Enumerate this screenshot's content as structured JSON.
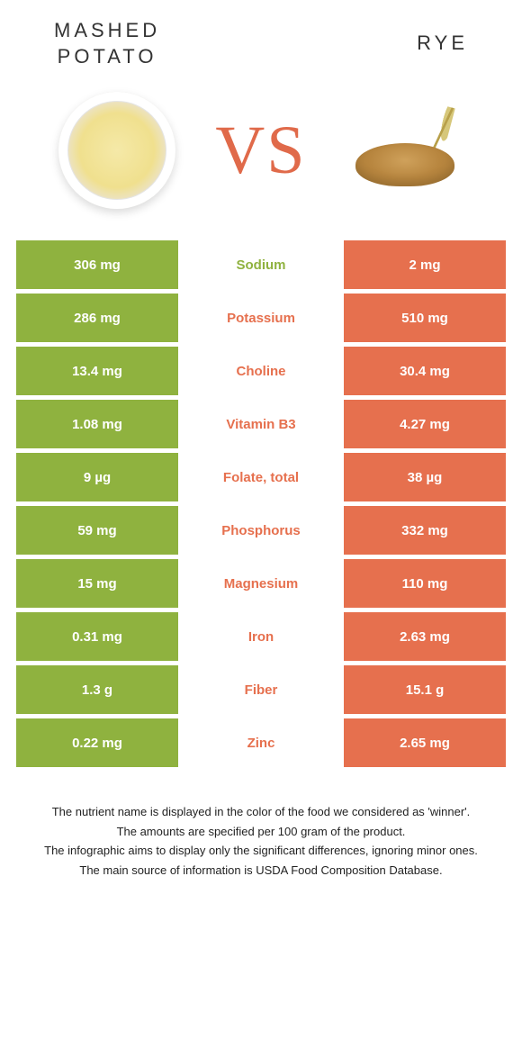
{
  "header": {
    "food1_line1": "MASHED",
    "food1_line2": "POTATO",
    "food2": "RYE"
  },
  "vs_label": "VS",
  "colors": {
    "left": "#8fb23f",
    "right": "#e6704e",
    "vs": "#e06a4a"
  },
  "rows": [
    {
      "left": "306 mg",
      "label": "Sodium",
      "right": "2 mg",
      "winner": "left"
    },
    {
      "left": "286 mg",
      "label": "Potassium",
      "right": "510 mg",
      "winner": "right"
    },
    {
      "left": "13.4 mg",
      "label": "Choline",
      "right": "30.4 mg",
      "winner": "right"
    },
    {
      "left": "1.08 mg",
      "label": "Vitamin B3",
      "right": "4.27 mg",
      "winner": "right"
    },
    {
      "left": "9 µg",
      "label": "Folate, total",
      "right": "38 µg",
      "winner": "right"
    },
    {
      "left": "59 mg",
      "label": "Phosphorus",
      "right": "332 mg",
      "winner": "right"
    },
    {
      "left": "15 mg",
      "label": "Magnesium",
      "right": "110 mg",
      "winner": "right"
    },
    {
      "left": "0.31 mg",
      "label": "Iron",
      "right": "2.63 mg",
      "winner": "right"
    },
    {
      "left": "1.3 g",
      "label": "Fiber",
      "right": "15.1 g",
      "winner": "right"
    },
    {
      "left": "0.22 mg",
      "label": "Zinc",
      "right": "2.65 mg",
      "winner": "right"
    }
  ],
  "footer": {
    "line1": "The nutrient name is displayed in the color of the food we considered as 'winner'.",
    "line2": "The amounts are specified per 100 gram of the product.",
    "line3": "The infographic aims to display only the significant differences, ignoring minor ones.",
    "line4": "The main source of information is USDA Food Composition Database."
  }
}
